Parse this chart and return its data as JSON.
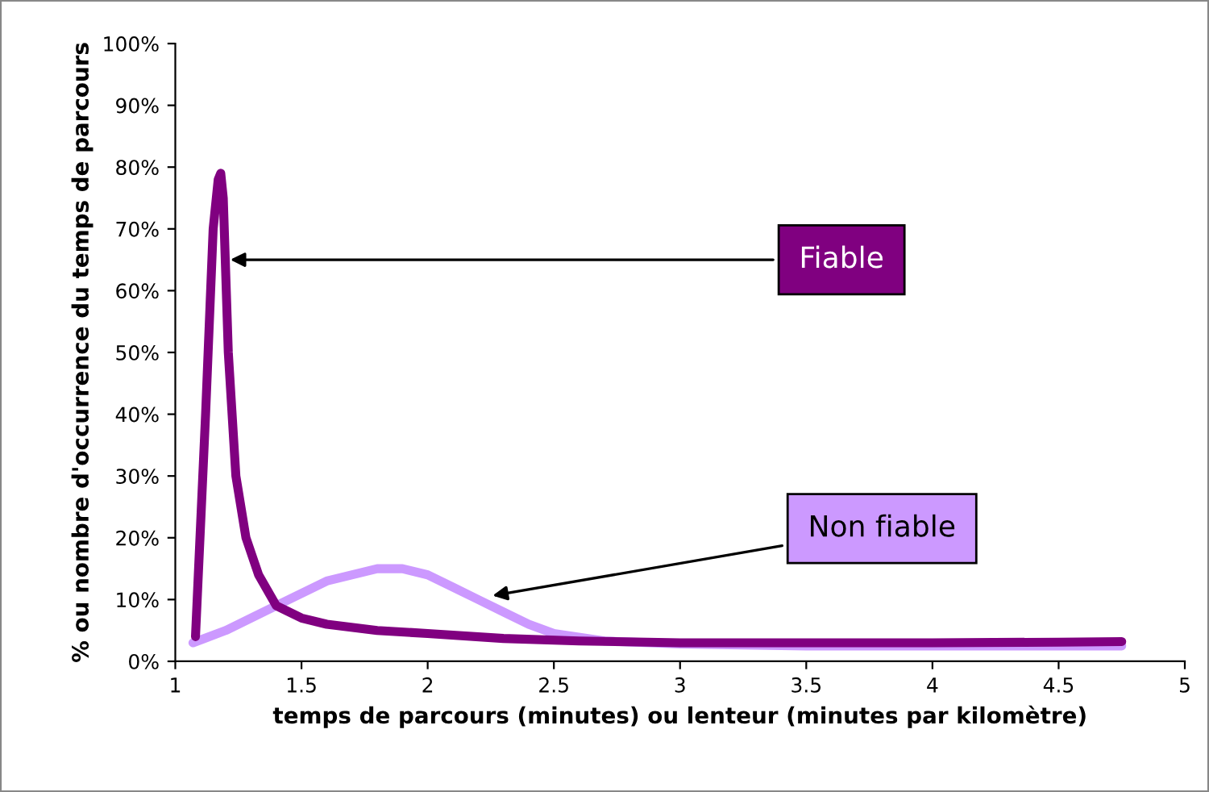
{
  "chart_data": {
    "type": "line",
    "xlabel": "temps de parcours (minutes) ou lenteur (minutes par kilomètre)",
    "ylabel": "% ou nombre d'occurrence du temps de parcours",
    "series": [
      {
        "name": "Fiable",
        "color": "#800080",
        "x": [
          1.08,
          1.12,
          1.15,
          1.17,
          1.18,
          1.19,
          1.21,
          1.24,
          1.28,
          1.33,
          1.4,
          1.5,
          1.6,
          1.8,
          2.0,
          2.3,
          2.6,
          3.0,
          3.5,
          4.0,
          4.5,
          4.75
        ],
        "values": [
          4,
          40,
          70,
          78,
          79,
          75,
          50,
          30,
          20,
          14,
          9,
          7,
          6,
          5,
          4.5,
          3.7,
          3.3,
          3,
          3,
          3,
          3.1,
          3.2
        ]
      },
      {
        "name": "Non fiable",
        "color": "#cc99ff",
        "x": [
          1.07,
          1.2,
          1.4,
          1.6,
          1.8,
          1.9,
          2.0,
          2.1,
          2.2,
          2.3,
          2.4,
          2.5,
          2.7,
          3.0,
          3.5,
          4.0,
          4.75
        ],
        "values": [
          3,
          5,
          9,
          13,
          15,
          15,
          14,
          12,
          10,
          8,
          6,
          4.5,
          3.3,
          2.8,
          2.5,
          2.5,
          2.5
        ]
      }
    ],
    "xlim": [
      1,
      5
    ],
    "xticks": [
      1,
      1.5,
      2,
      2.5,
      3,
      3.5,
      4,
      4.5,
      5
    ],
    "ylim": [
      0,
      100
    ],
    "yticks": [
      {
        "value": 0,
        "label": "0%"
      },
      {
        "value": 10,
        "label": "10%"
      },
      {
        "value": 20,
        "label": "20%"
      },
      {
        "value": 30,
        "label": "30%"
      },
      {
        "value": 40,
        "label": "40%"
      },
      {
        "value": 50,
        "label": "50%"
      },
      {
        "value": 60,
        "label": "60%"
      },
      {
        "value": 70,
        "label": "70%"
      },
      {
        "value": 80,
        "label": "80%"
      },
      {
        "value": 90,
        "label": "90%"
      },
      {
        "value": 100,
        "label": "100%"
      }
    ],
    "grid": false,
    "legend": false,
    "marker": "none",
    "line_style": "solid"
  }
}
